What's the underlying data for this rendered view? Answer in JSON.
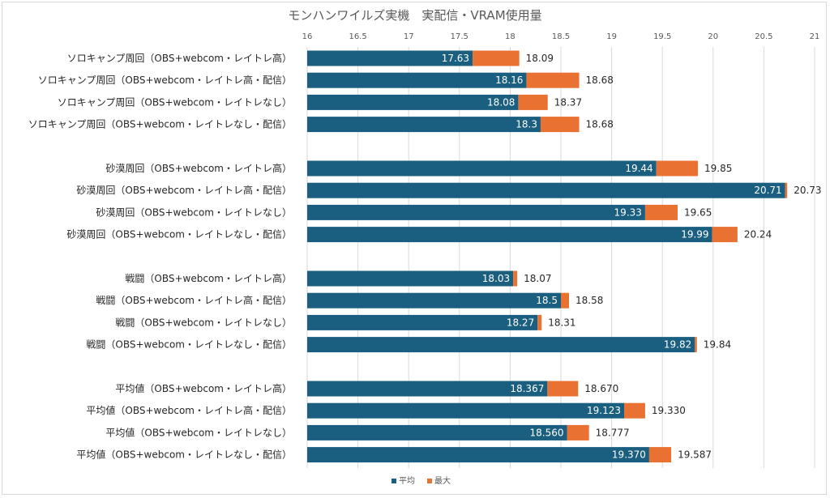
{
  "chart_data": {
    "type": "bar",
    "orientation": "horizontal",
    "stacked": true,
    "title": "モンハンワイルズ実機　実配信・VRAM使用量",
    "xlim": [
      16,
      21
    ],
    "x_ticks": [
      "16",
      "16.5",
      "17",
      "17.5",
      "18",
      "18.5",
      "19",
      "19.5",
      "20",
      "20.5",
      "21"
    ],
    "x_axis_position": "top",
    "grid": true,
    "legend_position": "bottom",
    "series": [
      {
        "name": "平均",
        "color": "#1a5f7f"
      },
      {
        "name": "最大",
        "color": "#e97132"
      }
    ],
    "groups": [
      {
        "rows": [
          {
            "label": "ソロキャンプ周回（OBS+webcom・レイトレ高）",
            "avg": 17.63,
            "max": 18.09,
            "avg_label": "17.63",
            "max_label": "18.09"
          },
          {
            "label": "ソロキャンプ周回（OBS+webcom・レイトレ高・配信）",
            "avg": 18.16,
            "max": 18.68,
            "avg_label": "18.16",
            "max_label": "18.68"
          },
          {
            "label": "ソロキャンプ周回（OBS+webcom・レイトレなし）",
            "avg": 18.08,
            "max": 18.37,
            "avg_label": "18.08",
            "max_label": "18.37"
          },
          {
            "label": "ソロキャンプ周回（OBS+webcom・レイトレなし・配信）",
            "avg": 18.3,
            "max": 18.68,
            "avg_label": "18.3",
            "max_label": "18.68"
          }
        ]
      },
      {
        "rows": [
          {
            "label": "砂漠周回（OBS+webcom・レイトレ高）",
            "avg": 19.44,
            "max": 19.85,
            "avg_label": "19.44",
            "max_label": "19.85"
          },
          {
            "label": "砂漠周回（OBS+webcom・レイトレ高・配信）",
            "avg": 20.71,
            "max": 20.73,
            "avg_label": "20.71",
            "max_label": "20.73"
          },
          {
            "label": "砂漠周回（OBS+webcom・レイトレなし）",
            "avg": 19.33,
            "max": 19.65,
            "avg_label": "19.33",
            "max_label": "19.65"
          },
          {
            "label": "砂漠周回（OBS+webcom・レイトレなし・配信）",
            "avg": 19.99,
            "max": 20.24,
            "avg_label": "19.99",
            "max_label": "20.24"
          }
        ]
      },
      {
        "rows": [
          {
            "label": "戦闘（OBS+webcom・レイトレ高）",
            "avg": 18.03,
            "max": 18.07,
            "avg_label": "18.03",
            "max_label": "18.07"
          },
          {
            "label": "戦闘（OBS+webcom・レイトレ高・配信）",
            "avg": 18.5,
            "max": 18.58,
            "avg_label": "18.5",
            "max_label": "18.58"
          },
          {
            "label": "戦闘（OBS+webcom・レイトレなし）",
            "avg": 18.27,
            "max": 18.31,
            "avg_label": "18.27",
            "max_label": "18.31"
          },
          {
            "label": "戦闘（OBS+webcom・レイトレなし・配信）",
            "avg": 19.82,
            "max": 19.84,
            "avg_label": "19.82",
            "max_label": "19.84"
          }
        ]
      },
      {
        "rows": [
          {
            "label": "平均値（OBS+webcom・レイトレ高）",
            "avg": 18.367,
            "max": 18.67,
            "avg_label": "18.367",
            "max_label": "18.670"
          },
          {
            "label": "平均値（OBS+webcom・レイトレ高・配信）",
            "avg": 19.123,
            "max": 19.33,
            "avg_label": "19.123",
            "max_label": "19.330"
          },
          {
            "label": "平均値（OBS+webcom・レイトレなし）",
            "avg": 18.56,
            "max": 18.777,
            "avg_label": "18.560",
            "max_label": "18.777"
          },
          {
            "label": "平均値（OBS+webcom・レイトレなし・配信）",
            "avg": 19.37,
            "max": 19.587,
            "avg_label": "19.370",
            "max_label": "19.587"
          }
        ]
      }
    ]
  }
}
